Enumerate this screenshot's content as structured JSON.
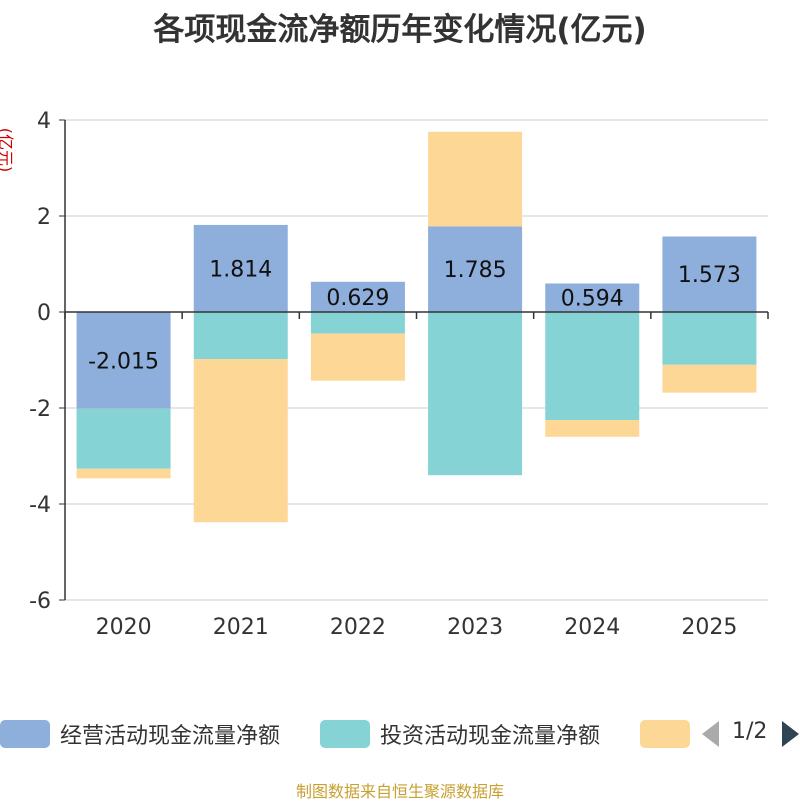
{
  "title": "各项现金流净额历年变化情况(亿元)",
  "y_unit_label": "(亿元)",
  "source": "制图数据来自恒生聚源数据库",
  "pager": {
    "text": "1/2"
  },
  "colors": {
    "operating": "#8eaedb",
    "investing": "#86d3d6",
    "financing": "#fdd796",
    "axis": "#333333",
    "grid": "#cccccc"
  },
  "legend": [
    {
      "label": "经营活动现金流量净额",
      "color": "#8eaedb"
    },
    {
      "label": "投资活动现金流量净额",
      "color": "#86d3d6"
    },
    {
      "label": "",
      "color": "#fdd796"
    }
  ],
  "chart_data": {
    "type": "bar",
    "stacked": true,
    "title": "各项现金流净额历年变化情况(亿元)",
    "ylabel": "(亿元)",
    "ylim": [
      -6,
      4
    ],
    "yticks": [
      4,
      2,
      0,
      -2,
      -4,
      -6
    ],
    "categories": [
      "2020",
      "2021",
      "2022",
      "2023",
      "2024",
      "2025"
    ],
    "series": [
      {
        "name": "经营活动现金流量净额",
        "values": [
          -2.015,
          1.814,
          0.629,
          1.785,
          0.594,
          1.573
        ],
        "labels": [
          "-2.015",
          "1.814",
          "0.629",
          "1.785",
          "0.594",
          "1.573"
        ],
        "color": "#8eaedb"
      },
      {
        "name": "投资活动现金流量净额",
        "values": [
          -1.25,
          -0.98,
          -0.45,
          -3.4,
          -2.25,
          -1.1
        ],
        "color": "#86d3d6"
      },
      {
        "name": "",
        "values": [
          -0.2,
          -3.4,
          -0.98,
          1.97,
          -0.35,
          -0.58
        ],
        "color": "#fdd796"
      }
    ]
  }
}
